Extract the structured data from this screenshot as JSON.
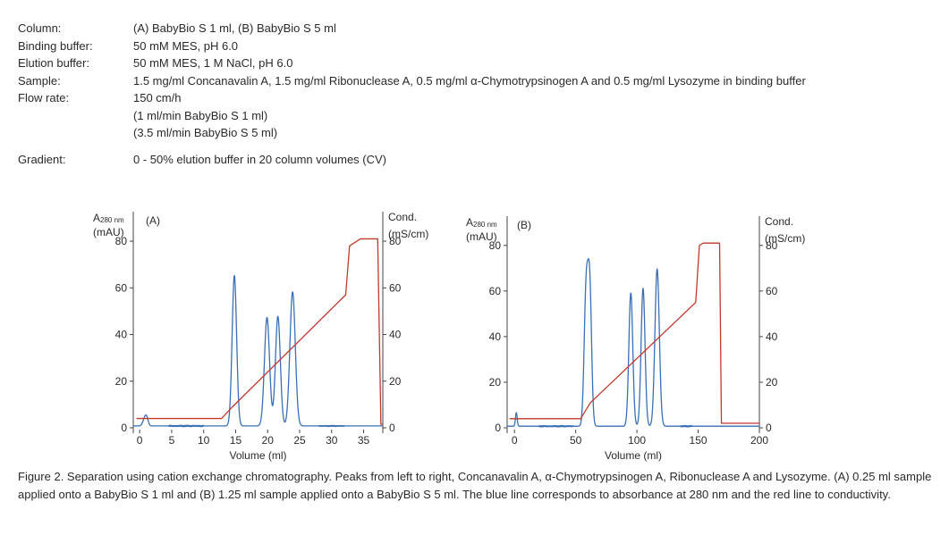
{
  "parameters": [
    {
      "label": "Column:",
      "values": [
        "(A) BabyBio S 1 ml, (B) BabyBio S 5 ml"
      ]
    },
    {
      "label": "Binding buffer:",
      "values": [
        "50 mM MES, pH 6.0"
      ]
    },
    {
      "label": "Elution buffer:",
      "values": [
        "50 mM MES, 1 M NaCl, pH 6.0"
      ]
    },
    {
      "label": "Sample:",
      "values": [
        "1.5 mg/ml Concanavalin A, 1.5 mg/ml Ribonuclease A, 0.5 mg/ml α-Chymotrypsinogen A and 0.5 mg/ml Lysozyme in binding buffer"
      ]
    },
    {
      "label": "Flow rate:",
      "values": [
        "150 cm/h",
        "(1 ml/min BabyBio S 1 ml)",
        "(3.5 ml/min BabyBio S 5 ml)"
      ]
    },
    {
      "label": "Gradient:",
      "values": [
        "0 - 50% elution buffer in 20 column volumes (CV)"
      ]
    }
  ],
  "caption": "Figure 2. Separation using cation exchange chromatography. Peaks from left to right, Concanavalin A, α-Chymotrypsinogen A, Ribonuclease A and Lysozyme. (A) 0.25 ml sample applied onto a BabyBio S 1 ml and (B) 1.25 ml sample applied onto a BabyBio S 5 ml. The blue line corresponds to absorbance at 280 nm and the red line to conductivity.",
  "colors": {
    "absorbance": "#3a6fb5",
    "conductivity": "#c0392b"
  },
  "chart_data": [
    {
      "type": "line",
      "panel_label": "(A)",
      "ylabel_main": "A",
      "ylabel_sub": "280 nm",
      "ylabel_unit": "(mAU)",
      "y2label_line1": "Cond.",
      "y2label_line2": "(mS/cm)",
      "xlabel": "Volume (ml)",
      "xlim": [
        -1,
        38
      ],
      "ylim": [
        0,
        85
      ],
      "y2lim": [
        0,
        85
      ],
      "xticks": [
        0,
        5,
        10,
        15,
        20,
        25,
        30,
        35
      ],
      "yticks": [
        0,
        20,
        40,
        60,
        80
      ],
      "y2ticks": [
        0,
        20,
        40,
        60,
        80
      ],
      "series": [
        {
          "key": "absorbance",
          "baseline": 0.8,
          "peaks": [
            [
              0.8,
              3,
              0.3
            ],
            [
              1.1,
              2.5,
              0.25
            ],
            [
              14.8,
              64.5,
              0.35
            ],
            [
              19.9,
              46.5,
              0.4
            ],
            [
              21.6,
              47,
              0.38
            ],
            [
              23.9,
              57.5,
              0.42
            ]
          ],
          "noise": [
            [
              4.5,
              10,
              0.2
            ],
            [
              28,
              32,
              0.15
            ]
          ]
        },
        {
          "key": "conductivity",
          "points": [
            [
              -0.5,
              4
            ],
            [
              12.8,
              4
            ],
            [
              14.5,
              9
            ],
            [
              32.2,
              57
            ],
            [
              32.8,
              78
            ],
            [
              34.5,
              81
            ],
            [
              37.2,
              81
            ],
            [
              37.7,
              1.5
            ],
            [
              38,
              1.5
            ]
          ]
        }
      ]
    },
    {
      "type": "line",
      "panel_label": "(B)",
      "ylabel_main": "A",
      "ylabel_sub": "280 nm",
      "ylabel_unit": "(mAU)",
      "y2label_line1": "Cond.",
      "y2label_line2": "(mS/cm)",
      "xlabel": "Volume (ml)",
      "xlim": [
        -6,
        200
      ],
      "ylim": [
        0,
        85
      ],
      "y2lim": [
        0,
        85
      ],
      "xticks": [
        0,
        50,
        100,
        150,
        200
      ],
      "yticks": [
        0,
        20,
        40,
        60,
        80
      ],
      "y2ticks": [
        0,
        20,
        40,
        60,
        80
      ],
      "series": [
        {
          "key": "absorbance",
          "baseline": 0.7,
          "peaks": [
            [
              1.5,
              6,
              0.7
            ],
            [
              58.5,
              59,
              1.6
            ],
            [
              61.5,
              58,
              1.5
            ],
            [
              95,
              58.5,
              1.6
            ],
            [
              105,
              60.5,
              1.6
            ],
            [
              116.5,
              69,
              1.8
            ]
          ],
          "noise": [
            [
              20,
              48,
              0.2
            ],
            [
              135,
              145,
              0.2
            ]
          ]
        },
        {
          "key": "conductivity",
          "points": [
            [
              -4,
              4
            ],
            [
              54,
              4
            ],
            [
              62,
              11
            ],
            [
              148,
              55
            ],
            [
              151,
              80
            ],
            [
              154,
              81
            ],
            [
              167.5,
              81
            ],
            [
              169,
              2
            ],
            [
              200,
              2
            ]
          ]
        }
      ]
    }
  ]
}
